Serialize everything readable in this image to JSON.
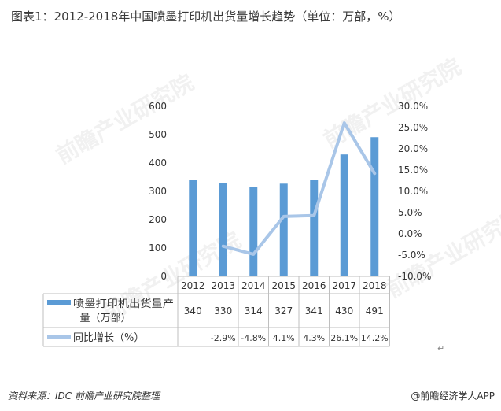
{
  "title": "图表1：2012-2018年中国喷墨打印机出货量增长趋势（单位：万部，%）",
  "chart_data": {
    "type": "bar",
    "categories": [
      "2012",
      "2013",
      "2014",
      "2015",
      "2016",
      "2017",
      "2018"
    ],
    "series": [
      {
        "name": "喷墨打印机出货量产量（万部）",
        "type": "bar",
        "axis": "left",
        "values": [
          340,
          330,
          314,
          327,
          341,
          430,
          491
        ],
        "labels": [
          "340",
          "330",
          "314",
          "327",
          "341",
          "430",
          "491"
        ]
      },
      {
        "name": "同比增长（%）",
        "type": "line",
        "axis": "right",
        "values": [
          null,
          -2.9,
          -4.8,
          4.1,
          4.3,
          26.1,
          14.2
        ],
        "labels": [
          "",
          "-2.9%",
          "-4.8%",
          "4.1%",
          "4.3%",
          "26.1%",
          "14.2%"
        ]
      }
    ],
    "y_left": {
      "min": 0,
      "max": 600,
      "ticks": [
        "0",
        "100",
        "200",
        "300",
        "400",
        "500",
        "600"
      ]
    },
    "y_right": {
      "min": -10,
      "max": 30,
      "ticks": [
        "-10.0%",
        "-5.0%",
        "0.0%",
        "5.0%",
        "10.0%",
        "15.0%",
        "20.0%",
        "25.0%",
        "30.0%"
      ]
    },
    "colors": {
      "bar": "#5b9bd5",
      "line": "#a9c6e8"
    },
    "legend_position": "bottom data table"
  },
  "watermark": "前瞻产业研究院",
  "footer": {
    "source": "资料来源：IDC 前瞻产业研究院整理",
    "brand": "@前瞻经济学人APP"
  },
  "return_mark": "↵"
}
